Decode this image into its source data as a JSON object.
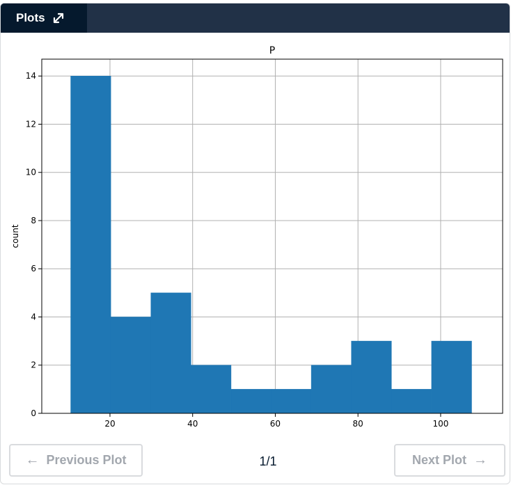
{
  "header": {
    "tab_label": "Plots",
    "expand_icon": "expand-arrows-icon"
  },
  "navigation": {
    "previous_label": "Previous Plot",
    "next_label": "Next Plot",
    "page_indicator": "1/1",
    "previous_icon": "arrow-left-icon",
    "next_icon": "arrow-right-icon"
  },
  "chart_data": {
    "type": "bar",
    "title": "P",
    "xlabel": "",
    "ylabel": "count",
    "bin_edges": [
      10.5,
      20.2,
      29.9,
      39.6,
      49.3,
      59.0,
      68.7,
      78.4,
      88.1,
      97.8,
      107.5
    ],
    "values": [
      14,
      4,
      5,
      2,
      1,
      1,
      2,
      3,
      1,
      3
    ],
    "xlim": [
      3.5,
      115
    ],
    "ylim": [
      0,
      14.7
    ],
    "xticks": [
      20,
      40,
      60,
      80,
      100
    ],
    "yticks": [
      0,
      2,
      4,
      6,
      8,
      10,
      12,
      14
    ],
    "grid": true,
    "bar_color": "#1f77b4"
  }
}
